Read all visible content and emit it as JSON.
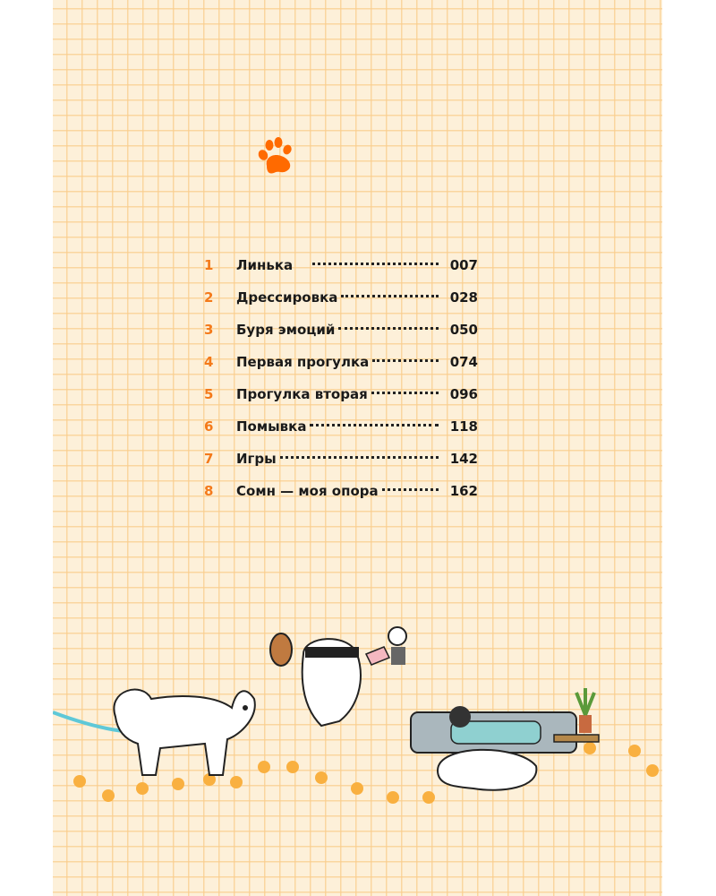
{
  "toc": [
    {
      "number": "1",
      "title": "Линька",
      "page": "007"
    },
    {
      "number": "2",
      "title": "Дрессировка",
      "page": "028"
    },
    {
      "number": "3",
      "title": "Буря эмоций",
      "page": "050"
    },
    {
      "number": "4",
      "title": "Первая прогулка",
      "page": "074"
    },
    {
      "number": "5",
      "title": "Прогулка вторая",
      "page": "096"
    },
    {
      "number": "6",
      "title": "Помывка",
      "page": "118"
    },
    {
      "number": "7",
      "title": "Игры",
      "page": "142"
    },
    {
      "number": "8",
      "title": "Сомн — моя опора",
      "page": "162"
    }
  ],
  "colors": {
    "accent": "#ff6a00",
    "number": "#f47a1a",
    "background": "#fdf0d9",
    "grid": "#fbd9a0"
  },
  "icons": [
    "paw-print-icon"
  ]
}
